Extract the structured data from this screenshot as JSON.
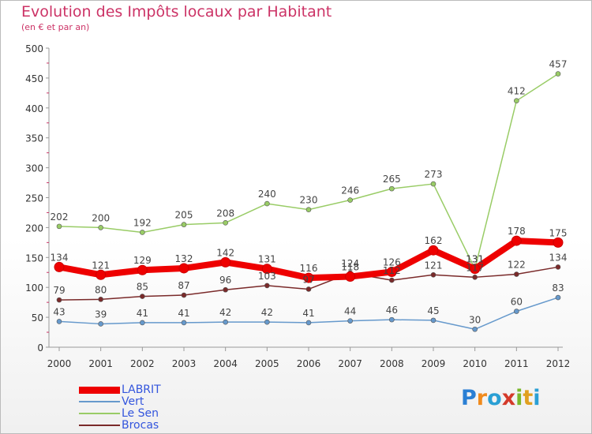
{
  "title": "Evolution des Impôts locaux par Habitant",
  "subtitle": "(en € et par an)",
  "logo_text": "Proxiti",
  "chart_data": {
    "type": "line",
    "title": "Evolution des Impôts locaux par Habitant",
    "ylabel": "(en € et par an)",
    "xlabel": "",
    "ylim": [
      0,
      500
    ],
    "yticks": [
      0,
      50,
      100,
      150,
      200,
      250,
      300,
      350,
      400,
      450,
      500
    ],
    "categories": [
      "2000",
      "2001",
      "2002",
      "2003",
      "2004",
      "2005",
      "2006",
      "2007",
      "2008",
      "2009",
      "2010",
      "2011",
      "2012"
    ],
    "series": [
      {
        "name": "Vert",
        "color": "#6699cc",
        "values": [
          43,
          39,
          41,
          41,
          42,
          42,
          41,
          44,
          46,
          45,
          30,
          60,
          83
        ]
      },
      {
        "name": "Brocas",
        "color": "#7a2a2a",
        "values": [
          79,
          80,
          85,
          87,
          96,
          103,
          97,
          124,
          112,
          121,
          117,
          122,
          134
        ]
      },
      {
        "name": "Le Sen",
        "color": "#99cc66",
        "values": [
          202,
          200,
          192,
          205,
          208,
          240,
          230,
          246,
          265,
          273,
          131,
          412,
          457
        ]
      },
      {
        "name": "LABRIT",
        "color": "#ee0000",
        "values": [
          134,
          121,
          129,
          132,
          142,
          131,
          116,
          118,
          126,
          162,
          131,
          178,
          175
        ]
      }
    ],
    "point_labels": {
      "Vert": [
        "43",
        "39",
        "41",
        "41",
        "42",
        "42",
        "41",
        "44",
        "46",
        "45",
        "30",
        "60",
        "83"
      ],
      "Brocas": [
        "79",
        "80",
        "85",
        "87",
        "96",
        "103",
        "97",
        "124",
        "112",
        "121",
        "117",
        "122",
        "134"
      ],
      "Le Sen": [
        "202",
        "200",
        "192",
        "205",
        "208",
        "240",
        "230",
        "246",
        "265",
        "273",
        "131",
        "412",
        "457"
      ],
      "LABRIT": [
        "134",
        "121",
        "129",
        "132",
        "142",
        "131",
        "116",
        "118",
        "126",
        "162",
        "131",
        "178",
        "175"
      ]
    },
    "legend": [
      {
        "name": "LABRIT",
        "color": "#ee0000"
      },
      {
        "name": "Vert",
        "color": "#6699cc"
      },
      {
        "name": "Le Sen",
        "color": "#99cc66"
      },
      {
        "name": "Brocas",
        "color": "#7a2a2a"
      }
    ],
    "legend_text_color": "#3355dd",
    "grid": false
  }
}
